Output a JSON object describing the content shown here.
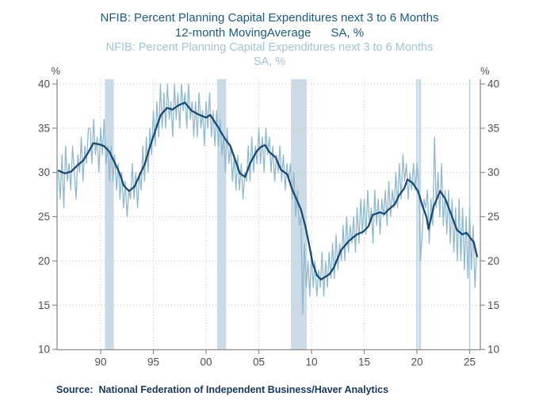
{
  "titles": {
    "line1": "NFIB: Percent Planning Capital Expenditures next 3 to 6 Months",
    "line2": "12-month MovingAverage      SA, %",
    "sub1": "NFIB: Percent Planning Capital Expenditures next 3 to 6 Months",
    "sub2": "SA, %"
  },
  "source": "Source:  National Federation of Independent Business/Haver Analytics",
  "axis": {
    "left_unit": "%",
    "right_unit": "%",
    "y_ticks": [
      10,
      15,
      20,
      25,
      30,
      35,
      40
    ],
    "x_ticks": [
      {
        "label": "90",
        "year": 1990
      },
      {
        "label": "95",
        "year": 1995
      },
      {
        "label": "00",
        "year": 2000
      },
      {
        "label": "05",
        "year": 2005
      },
      {
        "label": "10",
        "year": 2010
      },
      {
        "label": "15",
        "year": 2015
      },
      {
        "label": "20",
        "year": 2020
      },
      {
        "label": "25",
        "year": 2025
      }
    ]
  },
  "colors": {
    "title_navy": "#1E5A82",
    "title_light": "#A3C3D6",
    "monthly_line": "#8FB9D0",
    "moving_average_line": "#1A4A73",
    "recession_band": "#CBDBE6",
    "grid_dotted": "#C6C6C6",
    "grid_solid_blue": "#AAC6D8",
    "axis_line": "#8C8C8C",
    "tick_text": "#4F4F4F",
    "source_text": "#17375E"
  },
  "chart_data": {
    "type": "line",
    "title": "NFIB: Percent Planning Capital Expenditures next 3 to 6 Months",
    "subtitle": "12-month Moving Average / SA, %",
    "xlabel": "",
    "ylabel": "%",
    "ylim": [
      10,
      40
    ],
    "xlim": [
      1985.8,
      2026.3
    ],
    "grid": true,
    "legend_position": "none",
    "recessions": [
      [
        1990.4,
        1991.25
      ],
      [
        2001.05,
        2001.9
      ],
      [
        2008.05,
        2009.55
      ],
      [
        2020.12,
        2020.4
      ]
    ],
    "series": [
      {
        "name": "NFIB: Percent Planning Capital Expenditures next 3 to 6 Months (SA, %)",
        "role": "monthly",
        "start_year": 1986.0,
        "step_years": 0.1666667,
        "values": [
          30,
          27,
          32,
          26,
          33,
          29,
          31,
          28,
          33,
          30,
          27,
          32,
          30,
          34,
          29,
          33,
          31,
          35,
          35,
          31,
          36,
          32,
          34,
          30,
          35,
          32,
          36,
          31,
          33,
          29,
          33,
          29,
          32,
          28,
          31,
          27,
          30,
          26,
          29,
          25,
          28,
          27,
          31,
          27,
          30,
          26,
          30,
          28,
          33,
          29,
          34,
          30,
          35,
          32,
          37,
          33,
          38,
          34,
          40,
          35,
          39,
          35,
          40,
          36,
          38,
          34,
          40,
          36,
          39,
          35,
          40,
          37,
          39,
          35,
          40,
          36,
          38,
          34,
          38,
          34,
          39,
          35,
          37,
          33,
          38,
          35,
          39,
          34,
          37,
          33,
          37,
          33,
          36,
          32,
          34,
          30,
          35,
          31,
          33,
          29,
          32,
          28,
          32,
          28,
          31,
          27,
          30,
          29,
          33,
          29,
          34,
          30,
          33,
          31,
          35,
          31,
          34,
          30,
          35,
          32,
          34,
          30,
          33,
          29,
          32,
          30,
          33,
          29,
          32,
          28,
          31,
          29,
          31,
          27,
          30,
          25,
          28,
          24,
          25,
          14,
          22,
          17,
          20,
          16,
          21,
          17,
          20,
          16,
          19,
          17,
          21,
          16,
          20,
          17,
          21,
          18,
          22,
          18,
          23,
          19,
          22,
          20,
          24,
          20,
          25,
          21,
          24,
          22,
          25,
          21,
          26,
          22,
          27,
          23,
          27,
          23,
          28,
          24,
          26,
          22,
          28,
          24,
          27,
          23,
          27,
          25,
          28,
          24,
          29,
          25,
          28,
          26,
          30,
          26,
          31,
          27,
          32,
          29,
          31,
          27,
          30,
          28,
          31,
          28,
          31,
          29,
          20,
          23,
          27,
          26,
          28,
          22,
          27,
          24,
          34,
          26,
          30,
          25,
          31,
          24,
          28,
          23,
          28,
          22,
          27,
          21,
          26,
          20,
          27,
          20,
          26,
          19,
          25,
          18,
          26,
          19,
          24,
          17,
          21
        ]
      },
      {
        "name": "12-month Moving Average",
        "role": "moving_average",
        "points": [
          [
            1986.0,
            30.2
          ],
          [
            1986.6,
            29.9
          ],
          [
            1987.2,
            30.1
          ],
          [
            1987.8,
            30.8
          ],
          [
            1988.3,
            31.3
          ],
          [
            1988.8,
            32.2
          ],
          [
            1989.3,
            33.3
          ],
          [
            1989.8,
            33.2
          ],
          [
            1990.3,
            33.0
          ],
          [
            1990.8,
            32.4
          ],
          [
            1991.3,
            31.2
          ],
          [
            1991.8,
            29.9
          ],
          [
            1992.2,
            28.5
          ],
          [
            1992.7,
            27.9
          ],
          [
            1993.2,
            28.4
          ],
          [
            1993.7,
            29.7
          ],
          [
            1994.2,
            31.0
          ],
          [
            1994.7,
            33.0
          ],
          [
            1995.2,
            34.8
          ],
          [
            1995.7,
            36.5
          ],
          [
            1996.3,
            37.3
          ],
          [
            1996.8,
            37.1
          ],
          [
            1997.4,
            37.6
          ],
          [
            1998.0,
            37.9
          ],
          [
            1998.6,
            37.0
          ],
          [
            1999.2,
            36.6
          ],
          [
            2000.0,
            36.2
          ],
          [
            2000.4,
            36.5
          ],
          [
            2001.1,
            35.2
          ],
          [
            2001.8,
            33.8
          ],
          [
            2002.3,
            33.0
          ],
          [
            2002.8,
            31.3
          ],
          [
            2003.2,
            29.9
          ],
          [
            2003.7,
            29.5
          ],
          [
            2004.2,
            31.1
          ],
          [
            2004.8,
            32.4
          ],
          [
            2005.2,
            32.9
          ],
          [
            2005.6,
            33.1
          ],
          [
            2006.0,
            32.3
          ],
          [
            2006.6,
            31.7
          ],
          [
            2007.1,
            30.3
          ],
          [
            2007.7,
            29.8
          ],
          [
            2008.1,
            28.3
          ],
          [
            2008.6,
            26.9
          ],
          [
            2009.0,
            25.8
          ],
          [
            2009.4,
            24.0
          ],
          [
            2009.8,
            21.7
          ],
          [
            2010.1,
            19.8
          ],
          [
            2010.5,
            18.4
          ],
          [
            2010.9,
            17.9
          ],
          [
            2011.3,
            18.2
          ],
          [
            2011.7,
            18.5
          ],
          [
            2012.1,
            19.2
          ],
          [
            2012.8,
            21.2
          ],
          [
            2013.5,
            22.2
          ],
          [
            2014.3,
            23.0
          ],
          [
            2014.9,
            23.3
          ],
          [
            2015.4,
            23.9
          ],
          [
            2015.8,
            25.2
          ],
          [
            2016.5,
            25.5
          ],
          [
            2016.9,
            25.3
          ],
          [
            2017.3,
            25.8
          ],
          [
            2017.9,
            26.4
          ],
          [
            2018.3,
            27.4
          ],
          [
            2018.8,
            28.2
          ],
          [
            2019.1,
            29.2
          ],
          [
            2019.6,
            28.8
          ],
          [
            2020.1,
            27.9
          ],
          [
            2020.5,
            26.3
          ],
          [
            2020.9,
            25.0
          ],
          [
            2021.1,
            23.6
          ],
          [
            2021.6,
            26.2
          ],
          [
            2022.2,
            27.9
          ],
          [
            2022.7,
            27.0
          ],
          [
            2023.3,
            25.1
          ],
          [
            2023.8,
            23.5
          ],
          [
            2024.3,
            23.0
          ],
          [
            2024.7,
            23.2
          ],
          [
            2025.0,
            22.7
          ],
          [
            2025.4,
            22.1
          ],
          [
            2025.7,
            20.5
          ]
        ]
      }
    ]
  }
}
